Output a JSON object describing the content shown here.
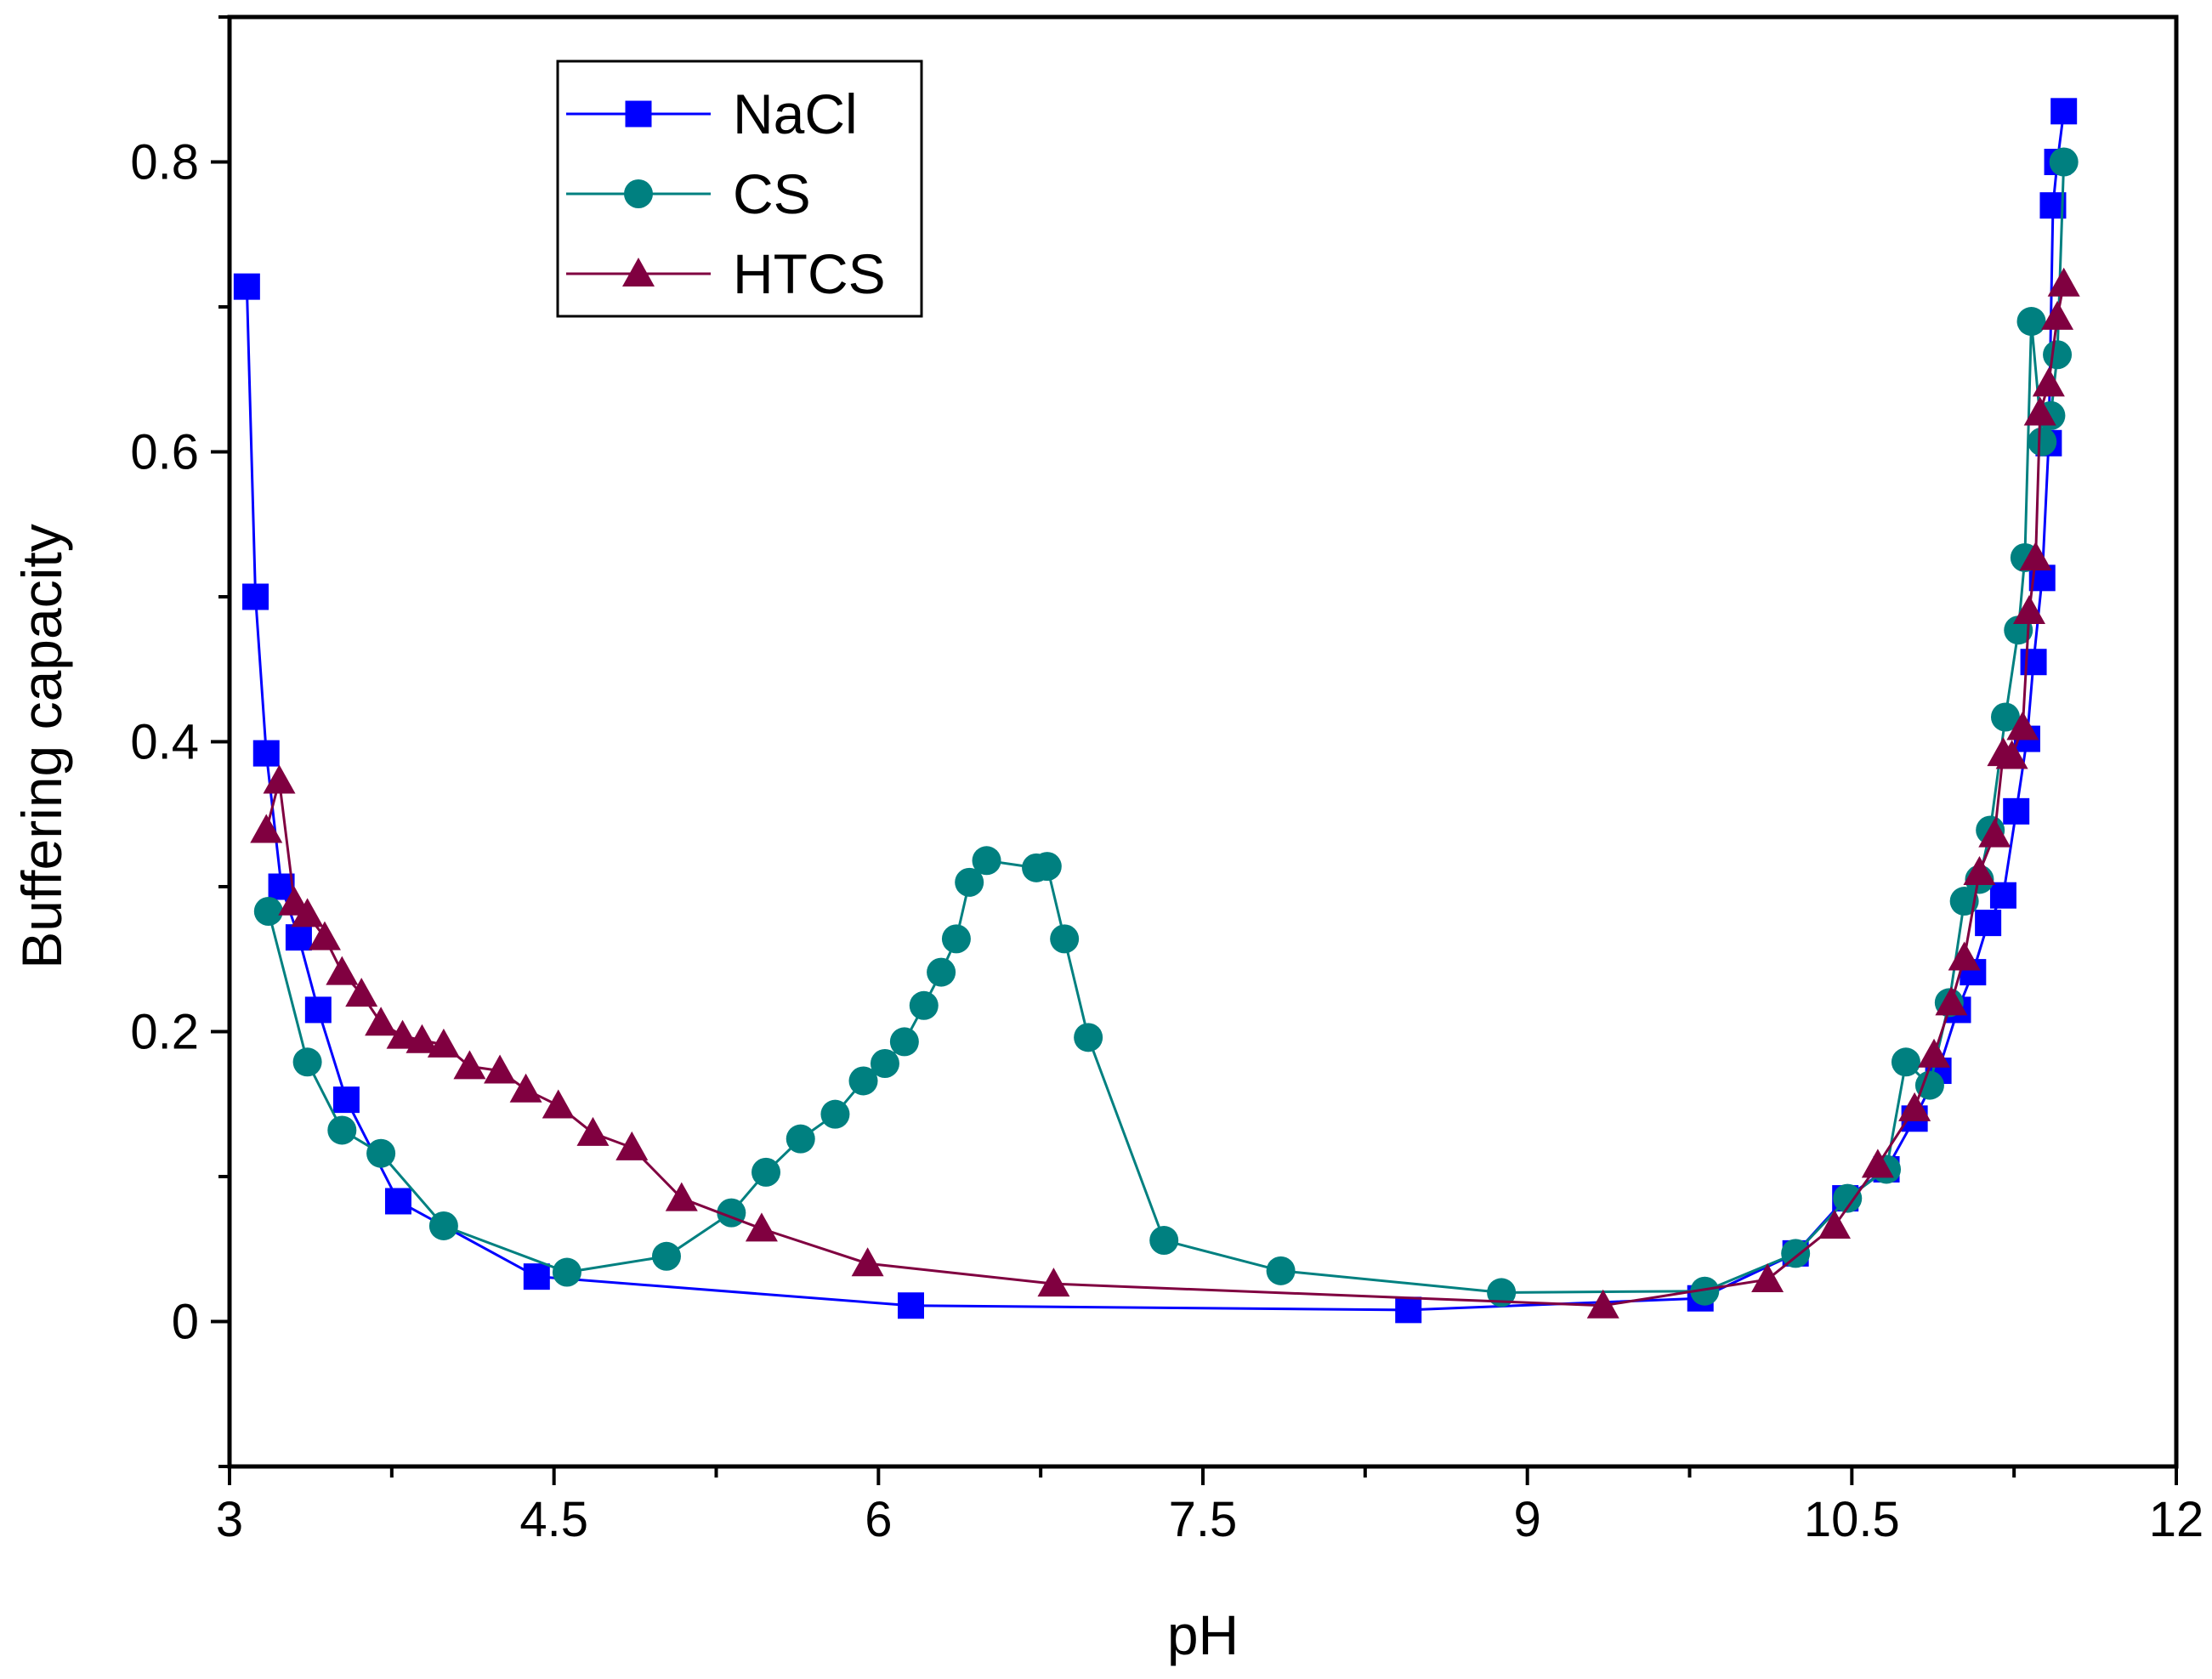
{
  "chart_data": {
    "type": "line",
    "title": "",
    "xlabel": "pH",
    "ylabel": "Buffering capacity",
    "xlim": [
      3,
      12
    ],
    "ylim": [
      -0.1,
      0.9
    ],
    "x_ticks": [
      3,
      4.5,
      6,
      7.5,
      9,
      10.5,
      12
    ],
    "x_tick_labels": [
      "3",
      "4.5",
      "6",
      "7.5",
      "9",
      "10.5",
      "12"
    ],
    "y_ticks": [
      0,
      0.2,
      0.4,
      0.6,
      0.8
    ],
    "y_tick_labels": [
      "0",
      "0.2",
      "0.4",
      "0.6",
      "0.8"
    ],
    "grid": false,
    "legend_position": "top-left",
    "series": [
      {
        "name": "NaCl",
        "color": "#0000ff",
        "marker": "square",
        "points": [
          [
            3.08,
            0.714
          ],
          [
            3.12,
            0.5
          ],
          [
            3.17,
            0.392
          ],
          [
            3.24,
            0.3
          ],
          [
            3.32,
            0.265
          ],
          [
            3.41,
            0.215
          ],
          [
            3.54,
            0.153
          ],
          [
            3.78,
            0.083
          ],
          [
            4.42,
            0.031
          ],
          [
            6.15,
            0.011
          ],
          [
            8.45,
            0.008
          ],
          [
            9.8,
            0.016
          ],
          [
            10.24,
            0.047
          ],
          [
            10.47,
            0.085
          ],
          [
            10.66,
            0.105
          ],
          [
            10.79,
            0.14
          ],
          [
            10.9,
            0.173
          ],
          [
            10.99,
            0.215
          ],
          [
            11.06,
            0.241
          ],
          [
            11.13,
            0.275
          ],
          [
            11.2,
            0.294
          ],
          [
            11.26,
            0.352
          ],
          [
            11.31,
            0.402
          ],
          [
            11.34,
            0.455
          ],
          [
            11.38,
            0.513
          ],
          [
            11.41,
            0.606
          ],
          [
            11.43,
            0.77
          ],
          [
            11.45,
            0.8
          ],
          [
            11.48,
            0.835
          ]
        ]
      },
      {
        "name": "CS",
        "color": "#008080",
        "marker": "circle",
        "points": [
          [
            3.18,
            0.283
          ],
          [
            3.36,
            0.179
          ],
          [
            3.52,
            0.132
          ],
          [
            3.7,
            0.116
          ],
          [
            3.99,
            0.066
          ],
          [
            4.56,
            0.034
          ],
          [
            5.02,
            0.045
          ],
          [
            5.32,
            0.075
          ],
          [
            5.48,
            0.103
          ],
          [
            5.64,
            0.126
          ],
          [
            5.8,
            0.143
          ],
          [
            5.93,
            0.166
          ],
          [
            6.03,
            0.178
          ],
          [
            6.12,
            0.193
          ],
          [
            6.21,
            0.218
          ],
          [
            6.29,
            0.241
          ],
          [
            6.36,
            0.264
          ],
          [
            6.42,
            0.303
          ],
          [
            6.5,
            0.318
          ],
          [
            6.73,
            0.313
          ],
          [
            6.78,
            0.314
          ],
          [
            6.86,
            0.264
          ],
          [
            6.97,
            0.196
          ],
          [
            7.32,
            0.056
          ],
          [
            7.86,
            0.035
          ],
          [
            8.88,
            0.02
          ],
          [
            9.82,
            0.021
          ],
          [
            10.24,
            0.047
          ],
          [
            10.48,
            0.085
          ],
          [
            10.66,
            0.105
          ],
          [
            10.75,
            0.179
          ],
          [
            10.86,
            0.163
          ],
          [
            10.95,
            0.22
          ],
          [
            11.02,
            0.29
          ],
          [
            11.09,
            0.305
          ],
          [
            11.14,
            0.339
          ],
          [
            11.21,
            0.417
          ],
          [
            11.27,
            0.477
          ],
          [
            11.3,
            0.527
          ],
          [
            11.33,
            0.69
          ],
          [
            11.38,
            0.607
          ],
          [
            11.42,
            0.625
          ],
          [
            11.45,
            0.667
          ],
          [
            11.48,
            0.8
          ]
        ]
      },
      {
        "name": "HTCS",
        "color": "#800040",
        "marker": "triangle",
        "points": [
          [
            3.17,
            0.339
          ],
          [
            3.23,
            0.373
          ],
          [
            3.3,
            0.289
          ],
          [
            3.36,
            0.281
          ],
          [
            3.44,
            0.265
          ],
          [
            3.52,
            0.241
          ],
          [
            3.61,
            0.226
          ],
          [
            3.7,
            0.206
          ],
          [
            3.8,
            0.197
          ],
          [
            3.89,
            0.194
          ],
          [
            3.99,
            0.191
          ],
          [
            4.11,
            0.176
          ],
          [
            4.25,
            0.173
          ],
          [
            4.37,
            0.16
          ],
          [
            4.52,
            0.149
          ],
          [
            4.68,
            0.13
          ],
          [
            4.86,
            0.12
          ],
          [
            5.09,
            0.085
          ],
          [
            5.46,
            0.064
          ],
          [
            5.95,
            0.04
          ],
          [
            6.81,
            0.026
          ],
          [
            9.35,
            0.011
          ],
          [
            10.11,
            0.029
          ],
          [
            10.42,
            0.066
          ],
          [
            10.62,
            0.108
          ],
          [
            10.79,
            0.147
          ],
          [
            10.88,
            0.184
          ],
          [
            10.96,
            0.22
          ],
          [
            11.02,
            0.251
          ],
          [
            11.09,
            0.31
          ],
          [
            11.16,
            0.336
          ],
          [
            11.2,
            0.392
          ],
          [
            11.24,
            0.39
          ],
          [
            11.29,
            0.41
          ],
          [
            11.32,
            0.49
          ],
          [
            11.35,
            0.527
          ],
          [
            11.37,
            0.627
          ],
          [
            11.41,
            0.647
          ],
          [
            11.45,
            0.693
          ],
          [
            11.48,
            0.716
          ]
        ]
      }
    ]
  }
}
